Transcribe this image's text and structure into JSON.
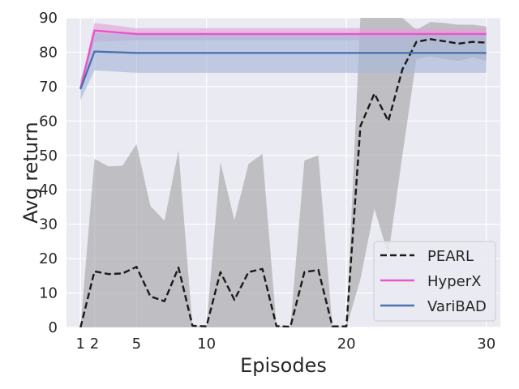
{
  "chart_data": {
    "type": "line",
    "xlabel": "Episodes",
    "ylabel": "Avg return",
    "xlim": [
      0,
      31
    ],
    "ylim": [
      0,
      90
    ],
    "xticks": [
      1,
      2,
      5,
      10,
      20,
      30
    ],
    "yticks": [
      0,
      10,
      20,
      30,
      40,
      50,
      60,
      70,
      80,
      90
    ],
    "grid": true,
    "legend_position": "lower-right",
    "background": "#eaeaf2",
    "series": [
      {
        "name": "PEARL",
        "style": "dashed",
        "color": "#1a1a1a",
        "band_color": "#a8a6a9",
        "x": [
          1,
          2,
          3,
          4,
          5,
          6,
          7,
          8,
          9,
          10,
          11,
          12,
          13,
          14,
          15,
          16,
          17,
          18,
          19,
          20,
          21,
          22,
          23,
          24,
          25,
          26,
          27,
          28,
          29,
          30
        ],
        "values": [
          0,
          16.3,
          15.5,
          15.7,
          17.6,
          9,
          7.6,
          17.4,
          0.5,
          0.3,
          16.1,
          8,
          16.1,
          17,
          0.4,
          0.2,
          16.1,
          16.7,
          0.3,
          0.3,
          58.5,
          68,
          60,
          75,
          83,
          83.8,
          83.2,
          82.5,
          83,
          82.8
        ],
        "lower": [
          0,
          0,
          0,
          0,
          0,
          0,
          0,
          0,
          0,
          0,
          0,
          0,
          0,
          0,
          0,
          0,
          0,
          0,
          0,
          0,
          14,
          34.5,
          21,
          50,
          78,
          78.8,
          78,
          77.5,
          78.5,
          77.5
        ],
        "upper": [
          0,
          49,
          46.8,
          47,
          53.3,
          35.3,
          31,
          51.5,
          0.5,
          0.3,
          48,
          31.2,
          47.5,
          50.5,
          0.4,
          0.2,
          48.5,
          50,
          0.3,
          0.3,
          90,
          90,
          90,
          90,
          86.5,
          88.8,
          88.5,
          88,
          88,
          87.5
        ]
      },
      {
        "name": "HyperX",
        "style": "solid",
        "color": "#e855c8",
        "band_color": "#e2a3d8",
        "x": [
          1,
          2,
          5,
          10,
          20,
          30
        ],
        "values": [
          69.5,
          86.3,
          85.3,
          85.3,
          85.3,
          85.3
        ],
        "lower": [
          68.5,
          83,
          83.5,
          83.5,
          83.5,
          83.5
        ],
        "upper": [
          70.5,
          88.5,
          87,
          87,
          87,
          87
        ]
      },
      {
        "name": "VariBAD",
        "style": "solid",
        "color": "#4c72b0",
        "band_color": "#a8b8d8",
        "x": [
          1,
          2,
          5,
          10,
          20,
          30
        ],
        "values": [
          69.3,
          80.2,
          79.8,
          79.8,
          79.8,
          79.8
        ],
        "lower": [
          66,
          74.7,
          74,
          74,
          74,
          74
        ],
        "upper": [
          72,
          85.5,
          85.3,
          85.3,
          85.3,
          85.3
        ]
      }
    ]
  }
}
